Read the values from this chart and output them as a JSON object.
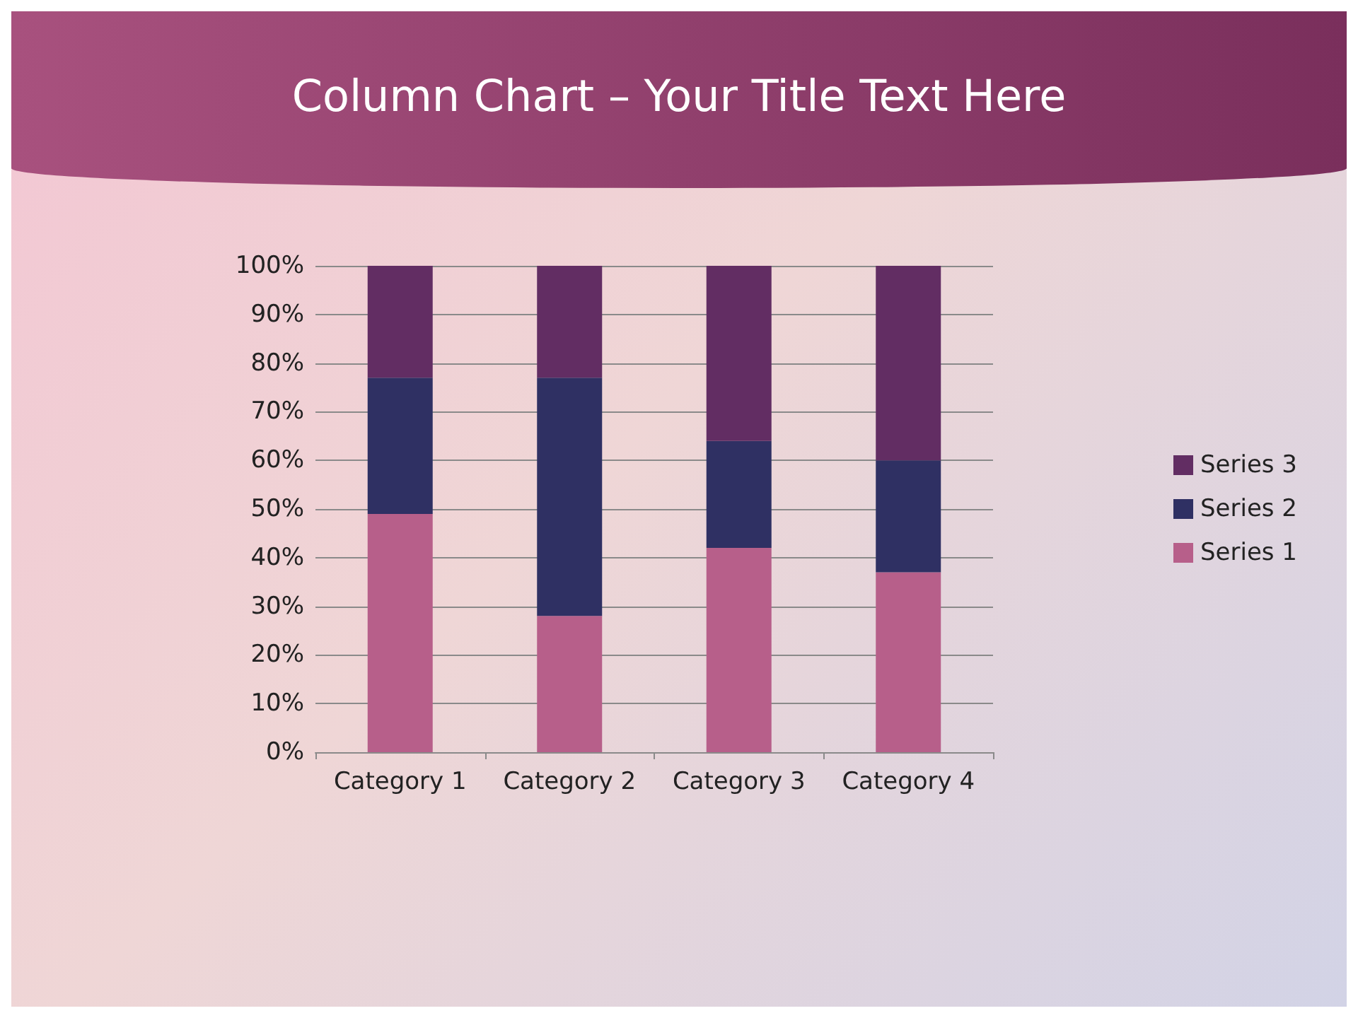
{
  "chart_data": {
    "type": "bar",
    "title": "Column Chart – Your Title Text Here",
    "categories": [
      "Category 1",
      "Category 2",
      "Category 3",
      "Category 4"
    ],
    "stacked": true,
    "series": [
      {
        "name": "Series 1",
        "color": "#b75f8a",
        "values": [
          49,
          28,
          42,
          37
        ]
      },
      {
        "name": "Series 2",
        "color": "#2f3063",
        "values": [
          28,
          49,
          22,
          23
        ]
      },
      {
        "name": "Series 3",
        "color": "#622d63",
        "values": [
          23,
          23,
          36,
          40
        ]
      }
    ],
    "ylim": [
      0,
      100
    ],
    "yticks": [
      {
        "value": 0,
        "label": "0%"
      },
      {
        "value": 10,
        "label": "10%"
      },
      {
        "value": 20,
        "label": "20%"
      },
      {
        "value": 30,
        "label": "30%"
      },
      {
        "value": 40,
        "label": "40%"
      },
      {
        "value": 50,
        "label": "50%"
      },
      {
        "value": 60,
        "label": "60%"
      },
      {
        "value": 70,
        "label": "70%"
      },
      {
        "value": 80,
        "label": "80%"
      },
      {
        "value": 90,
        "label": "90%"
      },
      {
        "value": 100,
        "label": "100%"
      }
    ],
    "grid": "y",
    "legend": "right"
  }
}
